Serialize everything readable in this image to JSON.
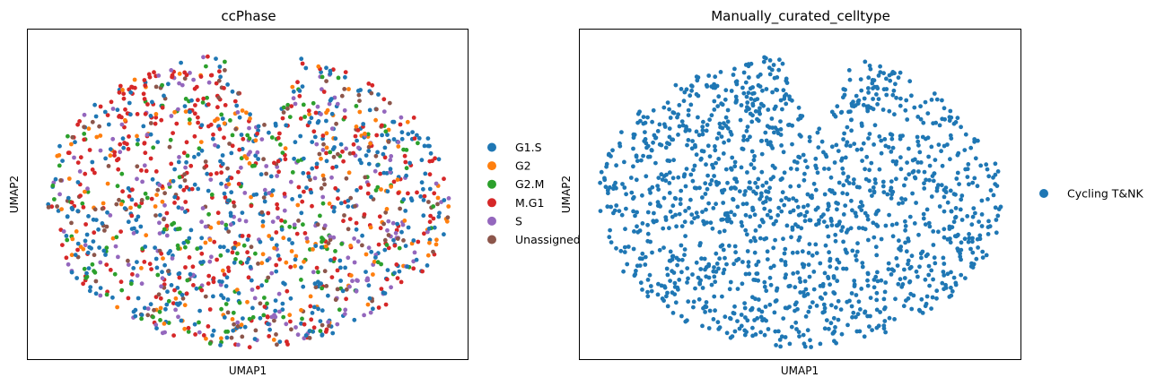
{
  "chart_data": [
    {
      "type": "scatter",
      "title": "ccPhase",
      "xlabel": "UMAP1",
      "ylabel": "UMAP2",
      "xticks": [],
      "yticks": [],
      "grid": false,
      "legend_position": "right",
      "series": [
        {
          "name": "G1.S",
          "color": "#1f77b4",
          "share": 0.3
        },
        {
          "name": "G2",
          "color": "#ff7f0e",
          "share": 0.1
        },
        {
          "name": "G2.M",
          "color": "#2ca02c",
          "share": 0.14
        },
        {
          "name": "M.G1",
          "color": "#d62728",
          "share": 0.2
        },
        {
          "name": "S",
          "color": "#9467bd",
          "share": 0.15
        },
        {
          "name": "Unassigned",
          "color": "#8c564b",
          "share": 0.11
        }
      ]
    },
    {
      "type": "scatter",
      "title": "Manually_curated_celltype",
      "xlabel": "UMAP1",
      "ylabel": "UMAP2",
      "xticks": [],
      "yticks": [],
      "grid": false,
      "legend_position": "right",
      "series": [
        {
          "name": "Cycling T&NK",
          "color": "#1f77b4",
          "share": 1.0
        }
      ]
    }
  ]
}
